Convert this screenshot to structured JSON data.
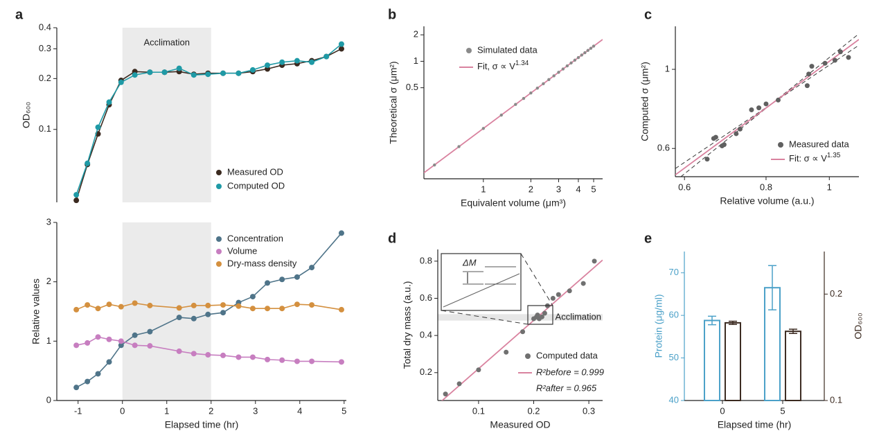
{
  "chart_data": [
    {
      "panel": "a",
      "type": "line",
      "ylabel": "OD₆₀₀",
      "yscale": "log",
      "xlim": [
        -1.48,
        5.05
      ],
      "ylim": [
        0.037,
        0.4
      ],
      "yticks": [
        0.1,
        0.2,
        0.3,
        0.4
      ],
      "shade": [
        0,
        2
      ],
      "shade_label": "Acclimation",
      "legend": "lower right",
      "x": [
        -1.04,
        -0.79,
        -0.55,
        -0.3,
        -0.03,
        0.28,
        0.62,
        0.95,
        1.28,
        1.61,
        1.93,
        2.27,
        2.62,
        2.94,
        3.27,
        3.6,
        3.94,
        4.27,
        4.6,
        4.94
      ],
      "series": [
        {
          "name": "Measured OD",
          "color": "#3b2a20",
          "values": [
            0.038,
            0.062,
            0.094,
            0.14,
            0.195,
            0.22,
            0.218,
            0.218,
            0.22,
            0.212,
            0.215,
            0.215,
            0.215,
            0.22,
            0.228,
            0.24,
            0.245,
            0.255,
            0.27,
            0.3
          ]
        },
        {
          "name": "Computed OD",
          "color": "#1f9aa6",
          "values": [
            0.041,
            0.063,
            0.103,
            0.145,
            0.19,
            0.21,
            0.218,
            0.218,
            0.23,
            0.21,
            0.212,
            0.215,
            0.215,
            0.225,
            0.24,
            0.25,
            0.255,
            0.25,
            0.27,
            0.32
          ]
        }
      ]
    },
    {
      "type": "line",
      "xlabel": "Elapsed time (hr)",
      "ylabel": "Relative values",
      "xlim": [
        -1.48,
        5.05
      ],
      "ylim": [
        0,
        3
      ],
      "xticks": [
        -1,
        0,
        1,
        2,
        3,
        4,
        5
      ],
      "yticks": [
        0,
        1,
        2,
        3
      ],
      "shade": [
        0,
        2
      ],
      "legend": "upper right",
      "x": [
        -1.04,
        -0.79,
        -0.55,
        -0.3,
        -0.03,
        0.28,
        0.62,
        1.28,
        1.61,
        1.93,
        2.27,
        2.62,
        2.94,
        3.27,
        3.6,
        3.94,
        4.27,
        4.94
      ],
      "series": [
        {
          "name": "Concentration",
          "color": "#4f7489",
          "values": [
            0.22,
            0.32,
            0.45,
            0.65,
            0.93,
            1.1,
            1.16,
            1.4,
            1.38,
            1.45,
            1.48,
            1.65,
            1.75,
            1.98,
            2.04,
            2.08,
            2.24,
            2.82
          ]
        },
        {
          "name": "Volume",
          "color": "#c77ec0",
          "values": [
            0.93,
            0.97,
            1.07,
            1.03,
            1.0,
            0.93,
            0.92,
            0.83,
            0.79,
            0.77,
            0.76,
            0.73,
            0.73,
            0.69,
            0.68,
            0.66,
            0.66,
            0.65
          ]
        },
        {
          "name": "Dry-mass density",
          "color": "#d4903f",
          "values": [
            1.53,
            1.61,
            1.55,
            1.62,
            1.58,
            1.64,
            1.6,
            1.56,
            1.6,
            1.6,
            1.61,
            1.59,
            1.55,
            1.55,
            1.55,
            1.62,
            1.61,
            1.53
          ]
        }
      ]
    },
    {
      "panel": "b",
      "type": "scatter",
      "xscale": "log",
      "yscale": "log",
      "xlabel": "Equivalent volume (μm³)",
      "ylabel": "Theoretical σ (μm²)",
      "xlim": [
        0.42,
        5.7
      ],
      "ylim": [
        0.046,
        2.5
      ],
      "xticks": [
        1,
        2,
        3,
        4,
        5
      ],
      "yticks": [
        0.5,
        1,
        2
      ],
      "legend": "upper left",
      "series": [
        {
          "name": "Simulated data",
          "color": "#8a8a8a",
          "x": [
            0.49,
            0.7,
            1.0,
            1.3,
            1.6,
            1.8,
            2.0,
            2.2,
            2.4,
            2.6,
            2.8,
            3.0,
            3.2,
            3.4,
            3.6,
            3.8,
            4.0,
            4.2,
            4.4,
            4.6,
            4.8,
            5.0
          ],
          "values": [
            0.066,
            0.107,
            0.172,
            0.244,
            0.323,
            0.378,
            0.436,
            0.495,
            0.556,
            0.619,
            0.683,
            0.749,
            0.818,
            0.887,
            0.957,
            1.029,
            1.103,
            1.177,
            1.253,
            1.33,
            1.407,
            1.487
          ]
        }
      ],
      "fit": {
        "name": "Fit, σ ∝ V",
        "exponent": 1.34,
        "color": "#d9829f"
      }
    },
    {
      "panel": "c",
      "type": "scatter",
      "xscale": "log",
      "yscale": "log",
      "xlabel": "Relative volume (a.u.)",
      "ylabel": "Computed σ (μm²)",
      "xlim": [
        0.581,
        1.11
      ],
      "ylim": [
        0.5,
        1.32
      ],
      "xticks": [
        0.6,
        0.8,
        1
      ],
      "yticks": [
        0.6,
        1
      ],
      "legend": "lower right",
      "series": [
        {
          "name": "Measured data",
          "color": "#606060",
          "x": [
            0.65,
            0.665,
            0.67,
            0.685,
            0.69,
            0.72,
            0.73,
            0.76,
            0.78,
            0.8,
            0.835,
            0.925,
            0.93,
            0.94,
            0.985,
            1.02,
            1.04,
            1.07
          ],
          "values": [
            0.56,
            0.64,
            0.645,
            0.61,
            0.615,
            0.66,
            0.68,
            0.77,
            0.78,
            0.8,
            0.82,
            0.9,
            0.97,
            1.02,
            1.04,
            1.06,
            1.12,
            1.08
          ]
        }
      ],
      "fit": {
        "name": "Fit: σ ∝ V",
        "exponent": 1.35,
        "color": "#d9829f"
      }
    },
    {
      "panel": "d",
      "type": "scatter",
      "xlabel": "Measured OD",
      "ylabel": "Total dry mass (a.u.)",
      "xlim": [
        0.026,
        0.325
      ],
      "ylim": [
        0.05,
        0.863
      ],
      "xticks": [
        0.1,
        0.2,
        0.3
      ],
      "yticks": [
        0.2,
        0.4,
        0.6,
        0.8
      ],
      "shade_y": [
        0.48,
        0.515
      ],
      "shade_label": "Acclimation",
      "inset_label": "ΔM",
      "legend": "lower right",
      "series": [
        {
          "name": "Computed data",
          "color": "#707070",
          "x": [
            0.04,
            0.065,
            0.1,
            0.15,
            0.18,
            0.2,
            0.205,
            0.207,
            0.21,
            0.215,
            0.22,
            0.225,
            0.235,
            0.245,
            0.265,
            0.29,
            0.31
          ],
          "values": [
            0.085,
            0.14,
            0.215,
            0.31,
            0.42,
            0.49,
            0.5,
            0.51,
            0.49,
            0.5,
            0.52,
            0.56,
            0.6,
            0.62,
            0.64,
            0.68,
            0.8
          ]
        }
      ],
      "fit": {
        "color": "#d9829f",
        "labels": [
          "R²before = 0.999",
          "R²after = 0.965"
        ]
      }
    },
    {
      "panel": "e",
      "type": "bar",
      "xlabel": "Elapsed time (hr)",
      "ylabel": "Protein (μg/ml)",
      "y2label": "OD₆₀₀",
      "x": [
        0,
        5
      ],
      "xlim": [
        -3.16,
        8.45
      ],
      "xticks": [
        0,
        5
      ],
      "ylim": [
        40,
        75
      ],
      "yticks": [
        40,
        50,
        60,
        70
      ],
      "y2lim": [
        0.1,
        0.24
      ],
      "y2ticks": [
        0.1,
        0.2
      ],
      "series": [
        {
          "color": "#4aa0c8",
          "values": [
            58.8,
            66.5
          ],
          "errors": [
            1,
            5.2
          ]
        },
        {
          "color": "#3b2a20",
          "values": [
            0.173,
            0.165
          ],
          "errors": [
            0.0015,
            0.002
          ],
          "axis": "y2"
        }
      ]
    }
  ]
}
